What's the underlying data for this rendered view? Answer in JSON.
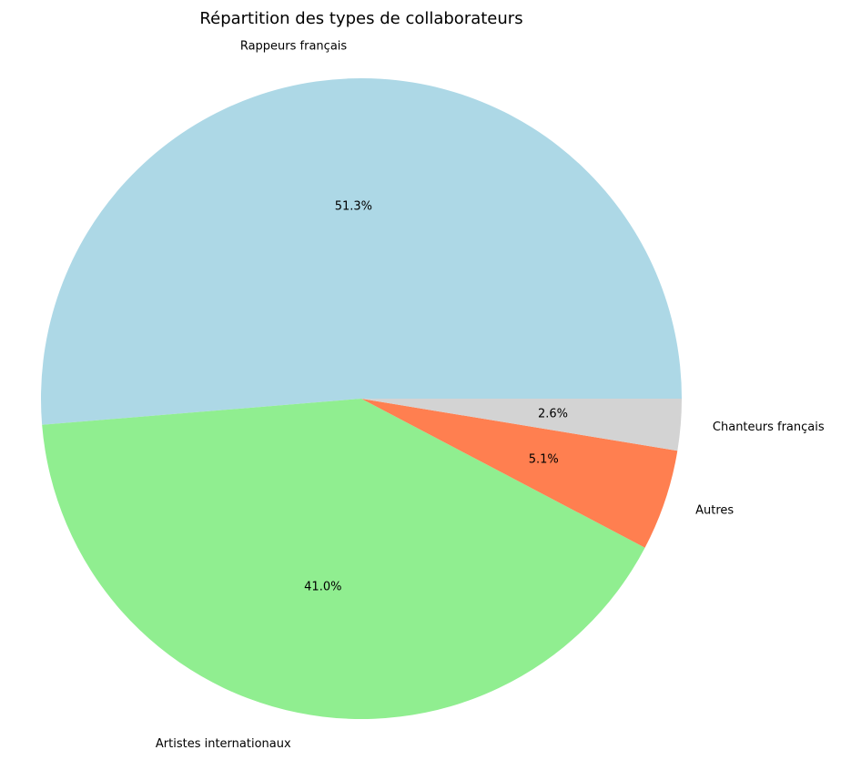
{
  "chart_data": {
    "type": "pie",
    "title": "Répartition des types de collaborateurs",
    "start_angle_deg": 0,
    "direction": "counterclockwise",
    "slices": [
      {
        "label": "Rappeurs français",
        "value": 51.3,
        "pct_label": "51.3%",
        "color": "#add8e6"
      },
      {
        "label": "Artistes internationaux",
        "value": 41.0,
        "pct_label": "41.0%",
        "color": "#90ee90"
      },
      {
        "label": "Autres",
        "value": 5.1,
        "pct_label": "5.1%",
        "color": "#ff7f50"
      },
      {
        "label": "Chanteurs français",
        "value": 2.6,
        "pct_label": "2.6%",
        "color": "#d3d3d3"
      }
    ]
  }
}
